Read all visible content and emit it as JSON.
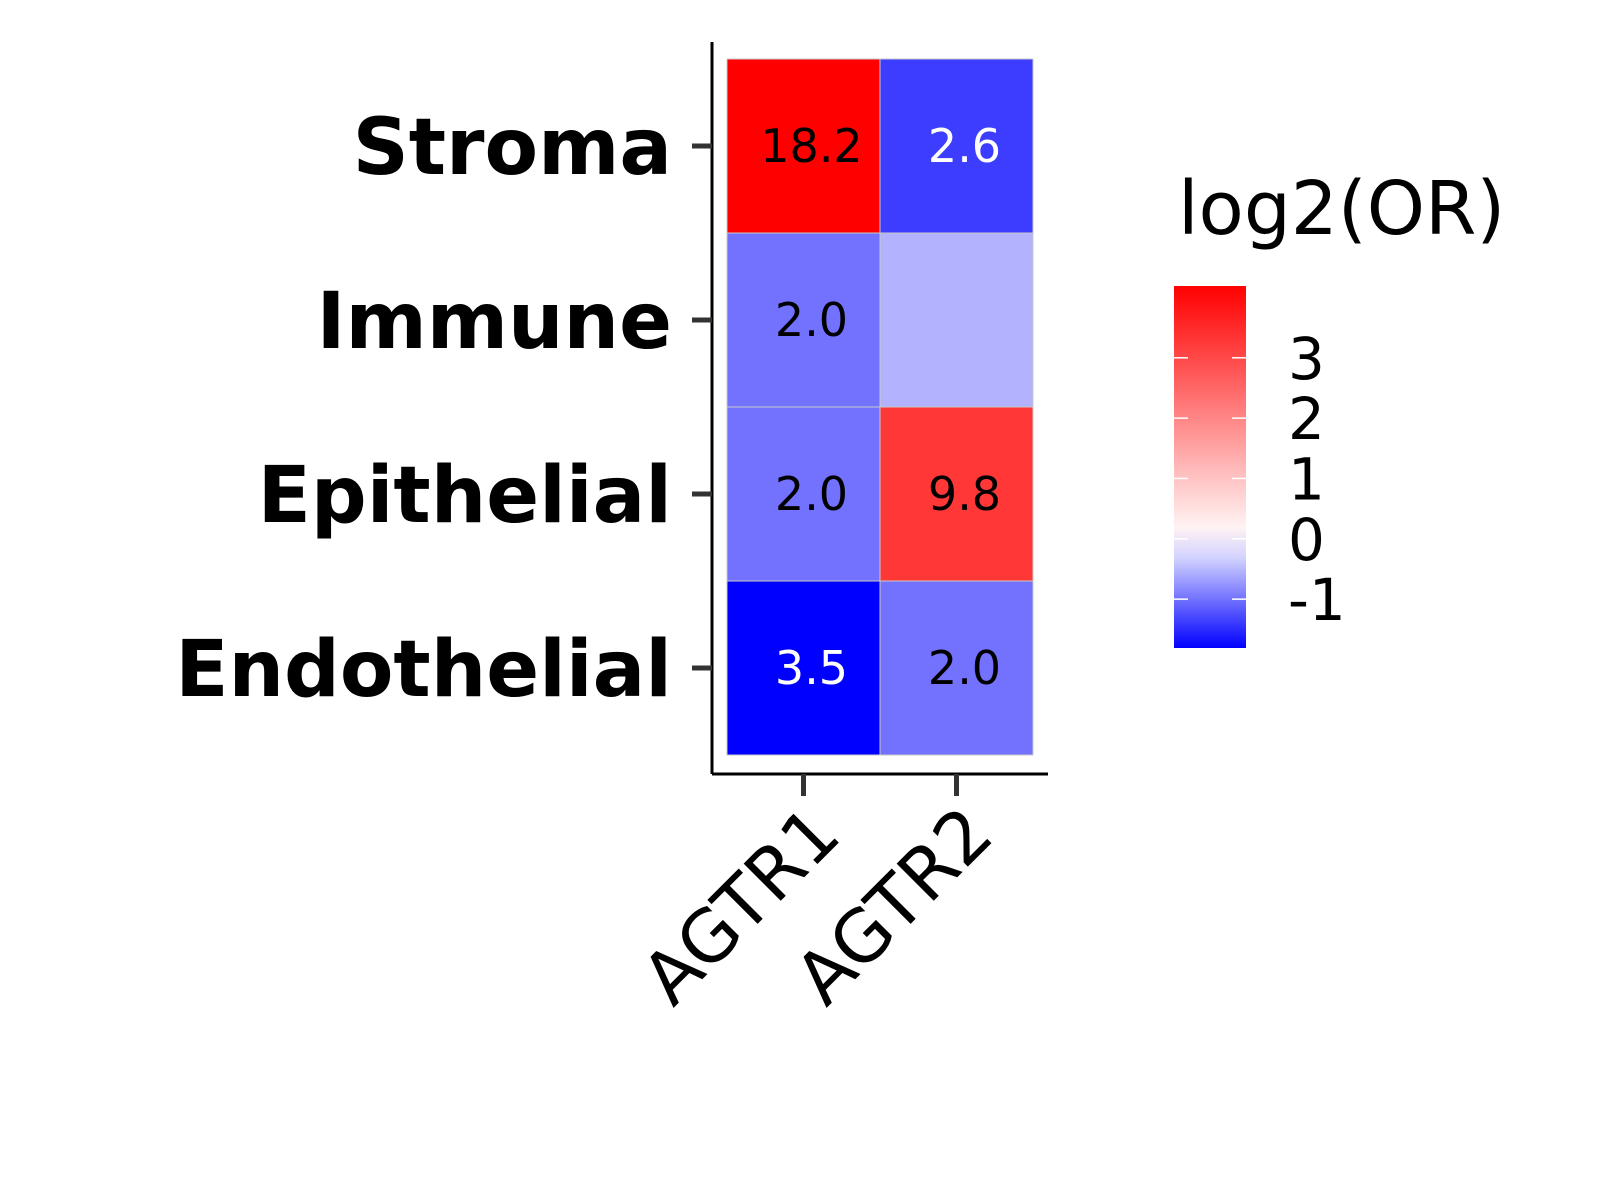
{
  "chart_data": {
    "type": "heatmap",
    "x_categories": [
      "AGTR1",
      "AGTR2"
    ],
    "y_categories": [
      "Stroma",
      "Immune",
      "Epithelial",
      "Endothelial"
    ],
    "cells": [
      {
        "row": "Stroma",
        "col": "AGTR1",
        "log2_or": 4.19,
        "label": "18.2",
        "label_color": "#000000"
      },
      {
        "row": "Stroma",
        "col": "AGTR2",
        "log2_or": -1.38,
        "label": "2.6",
        "label_color": "#ffffff"
      },
      {
        "row": "Immune",
        "col": "AGTR1",
        "log2_or": -1.0,
        "label": "2.0",
        "label_color": "#000000"
      },
      {
        "row": "Immune",
        "col": "AGTR2",
        "log2_or": -0.55,
        "label": "",
        "label_color": "#000000"
      },
      {
        "row": "Epithelial",
        "col": "AGTR1",
        "log2_or": -1.0,
        "label": "2.0",
        "label_color": "#000000"
      },
      {
        "row": "Epithelial",
        "col": "AGTR2",
        "log2_or": 3.29,
        "label": "9.8",
        "label_color": "#000000"
      },
      {
        "row": "Endothelial",
        "col": "AGTR1",
        "log2_or": -1.81,
        "label": "3.5",
        "label_color": "#ffffff"
      },
      {
        "row": "Endothelial",
        "col": "AGTR2",
        "log2_or": -1.0,
        "label": "2.0",
        "label_color": "#000000"
      }
    ],
    "legend": {
      "title": "log2(OR)",
      "ticks": [
        {
          "value": 3,
          "label": "3"
        },
        {
          "value": 2,
          "label": "2"
        },
        {
          "value": 1,
          "label": "1"
        },
        {
          "value": 0,
          "label": "0"
        },
        {
          "value": -1,
          "label": "-1"
        }
      ],
      "range": [
        -1.81,
        4.19
      ],
      "colors": {
        "low": "#0000ff",
        "mid": "#ffffff",
        "high": "#ff0000"
      }
    },
    "xlabel": "",
    "ylabel": "",
    "grid": false,
    "legend_position": "right"
  }
}
